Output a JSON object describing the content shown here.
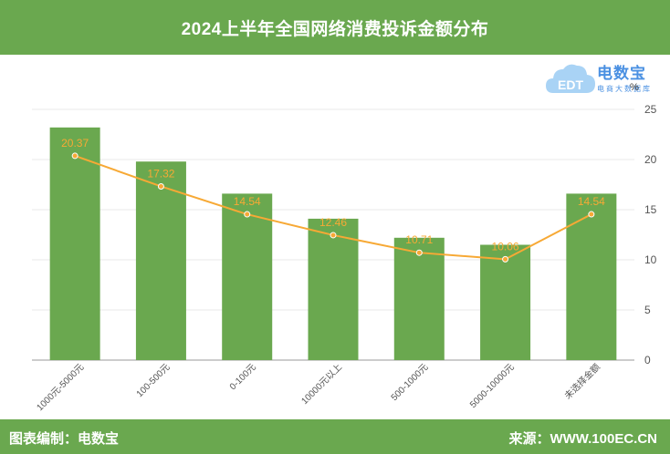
{
  "header": {
    "title": "2024上半年全国网络消费投诉金额分布"
  },
  "logo": {
    "brand": "电数宝",
    "subtitle": "电商大数据库",
    "cloud_text": "EDT"
  },
  "unit": "%",
  "footer": {
    "left": "图表编制：电数宝",
    "right": "来源：WWW.100EC.CN"
  },
  "colors": {
    "header_bg": "#6aa84f",
    "bar": "#6aa84f",
    "line": "#f7a935",
    "grid": "#e8e8e8"
  },
  "chart_data": {
    "type": "bar",
    "categories": [
      "1000元-5000元",
      "100-500元",
      "0-100元",
      "10000元以上",
      "500-1000元",
      "5000-10000元",
      "未选择金额"
    ],
    "series": [
      {
        "type": "bar",
        "values": [
          23.2,
          19.8,
          16.6,
          14.1,
          12.2,
          11.5,
          16.6
        ]
      },
      {
        "type": "line",
        "values": [
          20.37,
          17.32,
          14.54,
          12.46,
          10.71,
          10.06,
          14.54
        ]
      }
    ],
    "data_labels": [
      "20.37",
      "17.32",
      "14.54",
      "12.46",
      "10.71",
      "10.06",
      "14.54"
    ],
    "yaxis": {
      "position": "right",
      "ticks": [
        "0",
        "5",
        "10",
        "15",
        "20",
        "25"
      ],
      "ylim": [
        0,
        25
      ]
    },
    "grid": true
  }
}
